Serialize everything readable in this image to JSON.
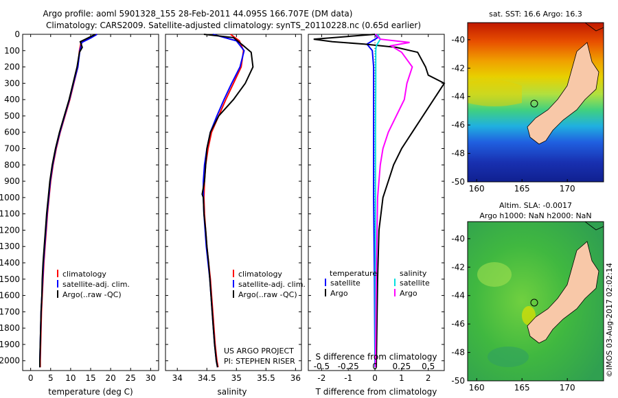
{
  "header": {
    "line1": "Argo profile: aoml 5901328_155 28-Feb-2011 44.095S 166.707E (DM data)",
    "line2": "Climatology: CARS2009. Satellite-adjusted climatology: synTS_20110228.nc (0.65d earlier)"
  },
  "chart_data": [
    {
      "type": "line",
      "panel": "temperature",
      "xlabel": "temperature (deg C)",
      "ylabel": "",
      "xlim": [
        -2,
        32
      ],
      "ylim": [
        2060,
        0
      ],
      "x_ticks": [
        0,
        5,
        10,
        15,
        20,
        25,
        30
      ],
      "y_ticks": [
        0,
        100,
        200,
        300,
        400,
        500,
        600,
        700,
        800,
        900,
        1000,
        1100,
        1200,
        1300,
        1400,
        1500,
        1600,
        1700,
        1800,
        1900,
        2000
      ],
      "legend": [
        "climatology",
        "satellite-adj. clim.",
        "Argo(..raw -QC)"
      ],
      "series": [
        {
          "name": "climatology",
          "color": "#ff0000",
          "points": [
            [
              16.5,
              0
            ],
            [
              15,
              20
            ],
            [
              12.6,
              50
            ],
            [
              12.2,
              100
            ],
            [
              11.8,
              200
            ],
            [
              10.8,
              300
            ],
            [
              9.8,
              400
            ],
            [
              8.6,
              500
            ],
            [
              7.4,
              600
            ],
            [
              6.4,
              700
            ],
            [
              5.6,
              800
            ],
            [
              5.0,
              900
            ],
            [
              4.6,
              1000
            ],
            [
              4.2,
              1100
            ],
            [
              3.9,
              1200
            ],
            [
              3.6,
              1300
            ],
            [
              3.3,
              1400
            ],
            [
              3.1,
              1500
            ],
            [
              2.9,
              1600
            ],
            [
              2.7,
              1700
            ],
            [
              2.6,
              1800
            ],
            [
              2.5,
              1900
            ],
            [
              2.4,
              2000
            ],
            [
              2.4,
              2040
            ]
          ]
        },
        {
          "name": "satellite-adj. clim.",
          "color": "#0000ff",
          "points": [
            [
              16.6,
              0
            ],
            [
              15.2,
              20
            ],
            [
              12.8,
              50
            ],
            [
              12.3,
              100
            ],
            [
              11.8,
              200
            ],
            [
              10.7,
              300
            ],
            [
              9.7,
              400
            ],
            [
              8.5,
              500
            ],
            [
              7.3,
              600
            ],
            [
              6.3,
              700
            ],
            [
              5.5,
              800
            ],
            [
              4.9,
              900
            ],
            [
              4.5,
              1000
            ],
            [
              4.1,
              1100
            ],
            [
              3.8,
              1200
            ],
            [
              3.5,
              1300
            ],
            [
              3.2,
              1400
            ],
            [
              3.0,
              1500
            ],
            [
              2.8,
              1600
            ],
            [
              2.6,
              1700
            ],
            [
              2.5,
              1800
            ],
            [
              2.4,
              1900
            ],
            [
              2.3,
              2000
            ],
            [
              2.3,
              2040
            ]
          ]
        },
        {
          "name": "Argo(..raw -QC)",
          "color": "#000000",
          "points": [
            [
              16.2,
              0
            ],
            [
              14.5,
              20
            ],
            [
              12.4,
              45
            ],
            [
              12.9,
              80
            ],
            [
              12.2,
              110
            ],
            [
              11.6,
              200
            ],
            [
              10.6,
              300
            ],
            [
              9.6,
              400
            ],
            [
              8.4,
              500
            ],
            [
              7.2,
              600
            ],
            [
              6.2,
              700
            ],
            [
              5.4,
              800
            ],
            [
              4.8,
              900
            ],
            [
              4.4,
              1000
            ],
            [
              4.0,
              1100
            ],
            [
              3.7,
              1200
            ],
            [
              3.4,
              1300
            ],
            [
              3.1,
              1400
            ],
            [
              2.9,
              1500
            ],
            [
              2.8,
              1600
            ],
            [
              2.6,
              1700
            ],
            [
              2.5,
              1800
            ],
            [
              2.4,
              1900
            ],
            [
              2.3,
              2000
            ],
            [
              2.3,
              2040
            ]
          ]
        }
      ]
    },
    {
      "type": "line",
      "panel": "salinity",
      "xlabel": "salinity",
      "ylabel": "",
      "xlim": [
        33.8,
        36.1
      ],
      "ylim": [
        2060,
        0
      ],
      "x_ticks": [
        34,
        34.5,
        35,
        35.5,
        36
      ],
      "legend": [
        "climatology",
        "satellite-adj. clim.",
        "Argo(..raw -QC)"
      ],
      "annotation": [
        "US ARGO PROJECT",
        "PI: STEPHEN RISER"
      ],
      "series": [
        {
          "name": "climatology",
          "color": "#ff0000",
          "points": [
            [
              34.9,
              0
            ],
            [
              35.05,
              40
            ],
            [
              35.12,
              100
            ],
            [
              35.08,
              200
            ],
            [
              34.95,
              300
            ],
            [
              34.82,
              400
            ],
            [
              34.7,
              500
            ],
            [
              34.58,
              600
            ],
            [
              34.52,
              700
            ],
            [
              34.48,
              800
            ],
            [
              34.46,
              900
            ],
            [
              34.45,
              1000
            ],
            [
              34.46,
              1100
            ],
            [
              34.48,
              1200
            ],
            [
              34.5,
              1300
            ],
            [
              34.53,
              1400
            ],
            [
              34.56,
              1500
            ],
            [
              34.58,
              1600
            ],
            [
              34.6,
              1700
            ],
            [
              34.62,
              1800
            ],
            [
              34.64,
              1900
            ],
            [
              34.67,
              2000
            ],
            [
              34.69,
              2040
            ]
          ]
        },
        {
          "name": "satellite-adj. clim.",
          "color": "#0000ff",
          "points": [
            [
              34.6,
              0
            ],
            [
              35.0,
              40
            ],
            [
              35.13,
              100
            ],
            [
              35.06,
              200
            ],
            [
              34.92,
              300
            ],
            [
              34.79,
              400
            ],
            [
              34.67,
              500
            ],
            [
              34.56,
              600
            ],
            [
              34.5,
              700
            ],
            [
              34.46,
              800
            ],
            [
              34.44,
              900
            ],
            [
              34.44,
              1000
            ],
            [
              34.45,
              1100
            ],
            [
              34.47,
              1200
            ],
            [
              34.49,
              1300
            ],
            [
              34.52,
              1400
            ],
            [
              34.55,
              1500
            ],
            [
              34.57,
              1600
            ],
            [
              34.59,
              1700
            ],
            [
              34.61,
              1800
            ],
            [
              34.63,
              1900
            ],
            [
              34.66,
              2000
            ],
            [
              34.68,
              2040
            ]
          ]
        },
        {
          "name": "Argo(..raw -QC)",
          "color": "#000000",
          "points": [
            [
              34.45,
              0
            ],
            [
              34.95,
              20
            ],
            [
              35.12,
              70
            ],
            [
              35.25,
              110
            ],
            [
              35.28,
              200
            ],
            [
              35.15,
              300
            ],
            [
              34.95,
              400
            ],
            [
              34.7,
              500
            ],
            [
              34.56,
              600
            ],
            [
              34.5,
              700
            ],
            [
              34.48,
              800
            ],
            [
              34.46,
              900
            ],
            [
              34.42,
              980
            ],
            [
              34.44,
              1000
            ],
            [
              34.45,
              1100
            ],
            [
              34.48,
              1200
            ],
            [
              34.5,
              1300
            ],
            [
              34.53,
              1400
            ],
            [
              34.55,
              1500
            ],
            [
              34.57,
              1600
            ],
            [
              34.59,
              1700
            ],
            [
              34.61,
              1800
            ],
            [
              34.63,
              1900
            ],
            [
              34.66,
              2000
            ],
            [
              34.68,
              2040
            ]
          ]
        }
      ]
    },
    {
      "type": "line",
      "panel": "difference",
      "xlabel": "T difference from climatology",
      "xlabel2": "S difference from climatology",
      "xlim": [
        -2.5,
        2.6
      ],
      "x_ticks": [
        -2,
        -1,
        0,
        1,
        2
      ],
      "x2_ticks": [
        -0.5,
        -0.25,
        0,
        0.25,
        0.5
      ],
      "x2_tick_labels": [
        "-0.5",
        "-0.25",
        "0",
        "0.25",
        "0.5"
      ],
      "ylim": [
        2060,
        0
      ],
      "legend_temperature_title": "temperature",
      "legend_salinity_title": "salinity",
      "legend": [
        "satellite",
        "Argo",
        "satellite",
        "Argo"
      ],
      "series": [
        {
          "name": "satellite",
          "group": "temperature",
          "color": "#0000ff",
          "points": [
            [
              0,
              0
            ],
            [
              0.1,
              20
            ],
            [
              -0.3,
              60
            ],
            [
              -0.1,
              100
            ],
            [
              -0.05,
              200
            ],
            [
              -0.05,
              300
            ],
            [
              -0.05,
              500
            ],
            [
              -0.05,
              800
            ],
            [
              -0.05,
              1000
            ],
            [
              -0.02,
              1500
            ],
            [
              0,
              2040
            ]
          ]
        },
        {
          "name": "Argo",
          "group": "temperature",
          "color": "#000000",
          "points": [
            [
              0,
              0
            ],
            [
              -2.3,
              30
            ],
            [
              -1.6,
              45
            ],
            [
              -0.4,
              60
            ],
            [
              0.8,
              80
            ],
            [
              1.6,
              110
            ],
            [
              1.9,
              200
            ],
            [
              2.0,
              250
            ],
            [
              2.6,
              300
            ],
            [
              2.2,
              400
            ],
            [
              1.8,
              500
            ],
            [
              1.4,
              600
            ],
            [
              1.0,
              700
            ],
            [
              0.7,
              800
            ],
            [
              0.5,
              900
            ],
            [
              0.3,
              1000
            ],
            [
              0.15,
              1200
            ],
            [
              0.1,
              1500
            ],
            [
              0.05,
              2040
            ]
          ]
        },
        {
          "name": "satellite",
          "group": "salinity",
          "color": "#00e0e0",
          "points": [
            [
              0.1,
              0
            ],
            [
              0.2,
              30
            ],
            [
              0.05,
              70
            ],
            [
              0.03,
              100
            ],
            [
              0.03,
              300
            ],
            [
              0.02,
              600
            ],
            [
              0.02,
              1000
            ],
            [
              0.01,
              1500
            ],
            [
              0.01,
              2040
            ]
          ]
        },
        {
          "name": "Argo",
          "group": "salinity",
          "color": "#ff00ff",
          "points": [
            [
              0.02,
              0
            ],
            [
              0.2,
              30
            ],
            [
              1.3,
              50
            ],
            [
              0.6,
              70
            ],
            [
              1.0,
              110
            ],
            [
              1.4,
              200
            ],
            [
              1.2,
              300
            ],
            [
              1.1,
              400
            ],
            [
              0.8,
              500
            ],
            [
              0.5,
              600
            ],
            [
              0.3,
              700
            ],
            [
              0.2,
              800
            ],
            [
              0.1,
              1000
            ],
            [
              0.05,
              1500
            ],
            [
              0.02,
              2040
            ]
          ]
        }
      ]
    }
  ],
  "maps": {
    "sst": {
      "title": "sat. SST: 16.6 Argo: 16.3",
      "x_ticks": [
        160,
        165,
        170
      ],
      "y_ticks": [
        -40,
        -42,
        -44,
        -46,
        -48,
        -50
      ]
    },
    "sla": {
      "title1": "Altim. SLA: -0.0017",
      "title2": "Argo h1000: NaN h2000: NaN",
      "x_ticks": [
        160,
        165,
        170
      ],
      "y_ticks": [
        -40,
        -42,
        -44,
        -46,
        -48,
        -50
      ]
    }
  },
  "footer": {
    "credit": "©IMOS 03-Aug-2017 02:02:14"
  }
}
